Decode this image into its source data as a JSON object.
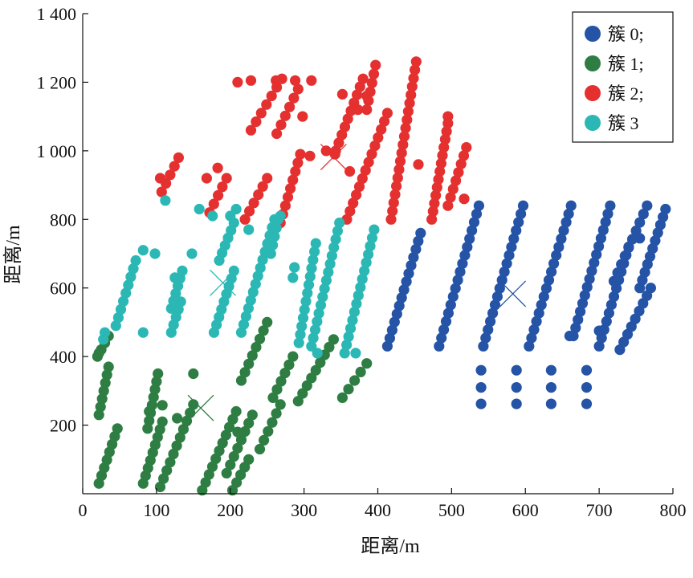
{
  "chart_data": {
    "type": "scatter",
    "title": "",
    "xlabel": "距离/m",
    "ylabel": "距离/m",
    "xlim": [
      0,
      800
    ],
    "ylim": [
      0,
      1400
    ],
    "xticks": [
      {
        "value": 0,
        "label": "0"
      },
      {
        "value": 100,
        "label": "100"
      },
      {
        "value": 200,
        "label": "200"
      },
      {
        "value": 300,
        "label": "300"
      },
      {
        "value": 400,
        "label": "400"
      },
      {
        "value": 500,
        "label": "500"
      },
      {
        "value": 600,
        "label": "600"
      },
      {
        "value": 700,
        "label": "700"
      },
      {
        "value": 800,
        "label": "800"
      }
    ],
    "yticks": [
      {
        "value": 200,
        "label": "200"
      },
      {
        "value": 400,
        "label": "400"
      },
      {
        "value": 600,
        "label": "600"
      },
      {
        "value": 800,
        "label": "800"
      },
      {
        "value": 1000,
        "label": "1 000"
      },
      {
        "value": 1200,
        "label": "1 200"
      },
      {
        "value": 1400,
        "label": "1 400"
      }
    ],
    "grid": false,
    "legend_position": "top-right",
    "series": [
      {
        "name": "簇 0;",
        "color": "#2553a6",
        "stripes": [
          [
            [
              413,
              430
            ],
            [
              458,
              760
            ]
          ],
          [
            [
              483,
              430
            ],
            [
              537,
              840
            ]
          ],
          [
            [
              543,
              430
            ],
            [
              597,
              840
            ]
          ],
          [
            [
              605,
              430
            ],
            [
              662,
              840
            ]
          ],
          [
            [
              665,
              460
            ],
            [
              715,
              840
            ]
          ],
          [
            [
              700,
              430
            ],
            [
              740,
              720
            ]
          ],
          [
            [
              720,
              620
            ],
            [
              765,
              840
            ]
          ],
          [
            [
              728,
              420
            ],
            [
              770,
              600
            ]
          ],
          [
            [
              755,
              600
            ],
            [
              790,
              830
            ]
          ]
        ],
        "extra_points": [
          [
            540,
            360
          ],
          [
            540,
            310
          ],
          [
            540,
            262
          ],
          [
            588,
            360
          ],
          [
            588,
            310
          ],
          [
            588,
            262
          ],
          [
            635,
            360
          ],
          [
            635,
            310
          ],
          [
            635,
            262
          ],
          [
            683,
            360
          ],
          [
            683,
            310
          ],
          [
            683,
            262
          ],
          [
            755,
            745
          ],
          [
            700,
            475
          ],
          [
            660,
            460
          ]
        ]
      },
      {
        "name": "簇 1;",
        "color": "#2e7d43",
        "stripes": [
          [
            [
              20,
              400
            ],
            [
              35,
              460
            ]
          ],
          [
            [
              22,
              230
            ],
            [
              35,
              370
            ]
          ],
          [
            [
              22,
              30
            ],
            [
              47,
              190
            ]
          ],
          [
            [
              82,
              30
            ],
            [
              108,
              210
            ]
          ],
          [
            [
              88,
              190
            ],
            [
              102,
              350
            ]
          ],
          [
            [
              105,
              20
            ],
            [
              150,
              260
            ]
          ],
          [
            [
              162,
              10
            ],
            [
              208,
              240
            ]
          ],
          [
            [
              195,
              60
            ],
            [
              230,
              230
            ]
          ],
          [
            [
              203,
              10
            ],
            [
              225,
              100
            ]
          ],
          [
            [
              215,
              330
            ],
            [
              250,
              500
            ]
          ],
          [
            [
              240,
              130
            ],
            [
              268,
              260
            ]
          ],
          [
            [
              258,
              280
            ],
            [
              285,
              400
            ]
          ],
          [
            [
              292,
              270
            ],
            [
              340,
              450
            ]
          ],
          [
            [
              352,
              280
            ],
            [
              385,
              380
            ]
          ]
        ],
        "extra_points": [
          [
            22,
            410
          ],
          [
            90,
            240
          ],
          [
            108,
            258
          ],
          [
            128,
            220
          ],
          [
            150,
            350
          ],
          [
            210,
            180
          ]
        ]
      },
      {
        "name": "簇 2;",
        "color": "#e53030",
        "stripes": [
          [
            [
              107,
              880
            ],
            [
              130,
              980
            ]
          ],
          [
            [
              172,
              820
            ],
            [
              195,
              920
            ]
          ],
          [
            [
              220,
              800
            ],
            [
              250,
              920
            ]
          ],
          [
            [
              228,
              1060
            ],
            [
              270,
              1210
            ]
          ],
          [
            [
              263,
              1050
            ],
            [
              292,
              1180
            ]
          ],
          [
            [
              268,
              790
            ],
            [
              295,
              990
            ]
          ],
          [
            [
              343,
              1000
            ],
            [
              380,
              1210
            ]
          ],
          [
            [
              358,
              800
            ],
            [
              413,
              1110
            ]
          ],
          [
            [
              385,
              1120
            ],
            [
              397,
              1250
            ]
          ],
          [
            [
              418,
              800
            ],
            [
              452,
              1260
            ]
          ],
          [
            [
              473,
              800
            ],
            [
              495,
              1080
            ]
          ],
          [
            [
              495,
              840
            ],
            [
              520,
              1010
            ]
          ]
        ],
        "extra_points": [
          [
            105,
            920
          ],
          [
            168,
            920
          ],
          [
            183,
            950
          ],
          [
            210,
            1200
          ],
          [
            228,
            1205
          ],
          [
            262,
            1205
          ],
          [
            288,
            1205
          ],
          [
            310,
            1205
          ],
          [
            298,
            1100
          ],
          [
            308,
            985
          ],
          [
            330,
            1000
          ],
          [
            342,
            990
          ],
          [
            352,
            1165
          ],
          [
            362,
            940
          ],
          [
            373,
            1120
          ],
          [
            385,
            1160
          ],
          [
            495,
            1100
          ],
          [
            517,
            860
          ],
          [
            455,
            960
          ]
        ]
      },
      {
        "name": "簇 3",
        "color": "#2bb8b5",
        "stripes": [
          [
            [
              45,
              490
            ],
            [
              72,
              680
            ]
          ],
          [
            [
              120,
              540
            ],
            [
              135,
              650
            ]
          ],
          [
            [
              120,
              470
            ],
            [
              133,
              560
            ]
          ],
          [
            [
              178,
              470
            ],
            [
              205,
              650
            ]
          ],
          [
            [
              185,
              680
            ],
            [
              205,
              790
            ]
          ],
          [
            [
              215,
              470
            ],
            [
              260,
              800
            ]
          ],
          [
            [
              255,
              700
            ],
            [
              265,
              800
            ]
          ],
          [
            [
              293,
              440
            ],
            [
              316,
              730
            ]
          ],
          [
            [
              310,
              430
            ],
            [
              348,
              790
            ]
          ],
          [
            [
              355,
              410
            ],
            [
              395,
              770
            ]
          ]
        ],
        "extra_points": [
          [
            30,
            470
          ],
          [
            28,
            450
          ],
          [
            82,
            470
          ],
          [
            82,
            710
          ],
          [
            98,
            700
          ],
          [
            112,
            855
          ],
          [
            125,
            630
          ],
          [
            148,
            700
          ],
          [
            158,
            830
          ],
          [
            176,
            810
          ],
          [
            200,
            810
          ],
          [
            208,
            830
          ],
          [
            225,
            770
          ],
          [
            268,
            810
          ],
          [
            318,
            410
          ],
          [
            370,
            410
          ],
          [
            285,
            630
          ],
          [
            287,
            660
          ]
        ]
      }
    ],
    "centroids": [
      {
        "series": "簇 0;",
        "x": 583,
        "y": 583
      },
      {
        "series": "簇 1;",
        "x": 160,
        "y": 250
      },
      {
        "series": "簇 2;",
        "x": 340,
        "y": 982
      },
      {
        "series": "簇 3",
        "x": 190,
        "y": 615
      }
    ]
  }
}
